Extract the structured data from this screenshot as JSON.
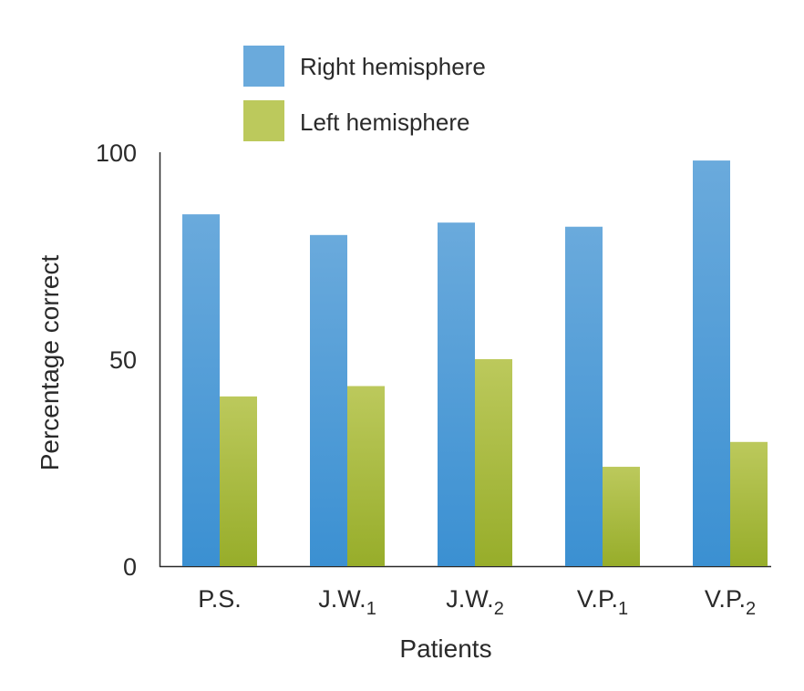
{
  "chart_data": {
    "type": "bar",
    "title": "",
    "xlabel": "Patients",
    "ylabel": "Percentage correct",
    "ylim": [
      0,
      100
    ],
    "yticks": [
      "0",
      "50",
      "100"
    ],
    "categories": [
      {
        "main": "P.S.",
        "sub": ""
      },
      {
        "main": "J.W.",
        "sub": "1"
      },
      {
        "main": "J.W.",
        "sub": "2"
      },
      {
        "main": "V.P.",
        "sub": "1"
      },
      {
        "main": "V.P.",
        "sub": "2"
      }
    ],
    "series": [
      {
        "name": "Right hemisphere",
        "color": "#6aaadc",
        "values": [
          85,
          80,
          83,
          82,
          98
        ]
      },
      {
        "name": "Left hemisphere",
        "color": "#bcc95c",
        "values": [
          41,
          43.5,
          50,
          24,
          30
        ]
      }
    ],
    "legend_position": "top-center",
    "grid": false
  }
}
